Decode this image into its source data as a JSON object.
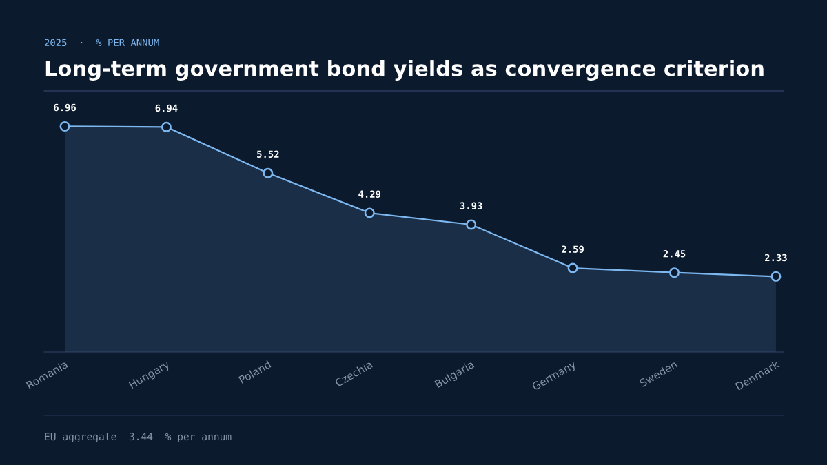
{
  "chart_data": {
    "type": "area",
    "subtitle": "2025  ·  % PER ANNUM",
    "title": "Long-term government bond yields as convergence criterion",
    "categories": [
      "Romania",
      "Hungary",
      "Poland",
      "Czechia",
      "Bulgaria",
      "Germany",
      "Sweden",
      "Denmark"
    ],
    "series": [
      {
        "color": "#7db8f0",
        "values": [
          6.96,
          6.94,
          5.52,
          4.29,
          3.93,
          2.59,
          2.45,
          2.33
        ]
      }
    ],
    "tick_labels": "x",
    "marker": "circle",
    "line_style": "solid",
    "data_labels": true,
    "annotations": [
      "EU aggregate  3.44  % per annum"
    ]
  }
}
